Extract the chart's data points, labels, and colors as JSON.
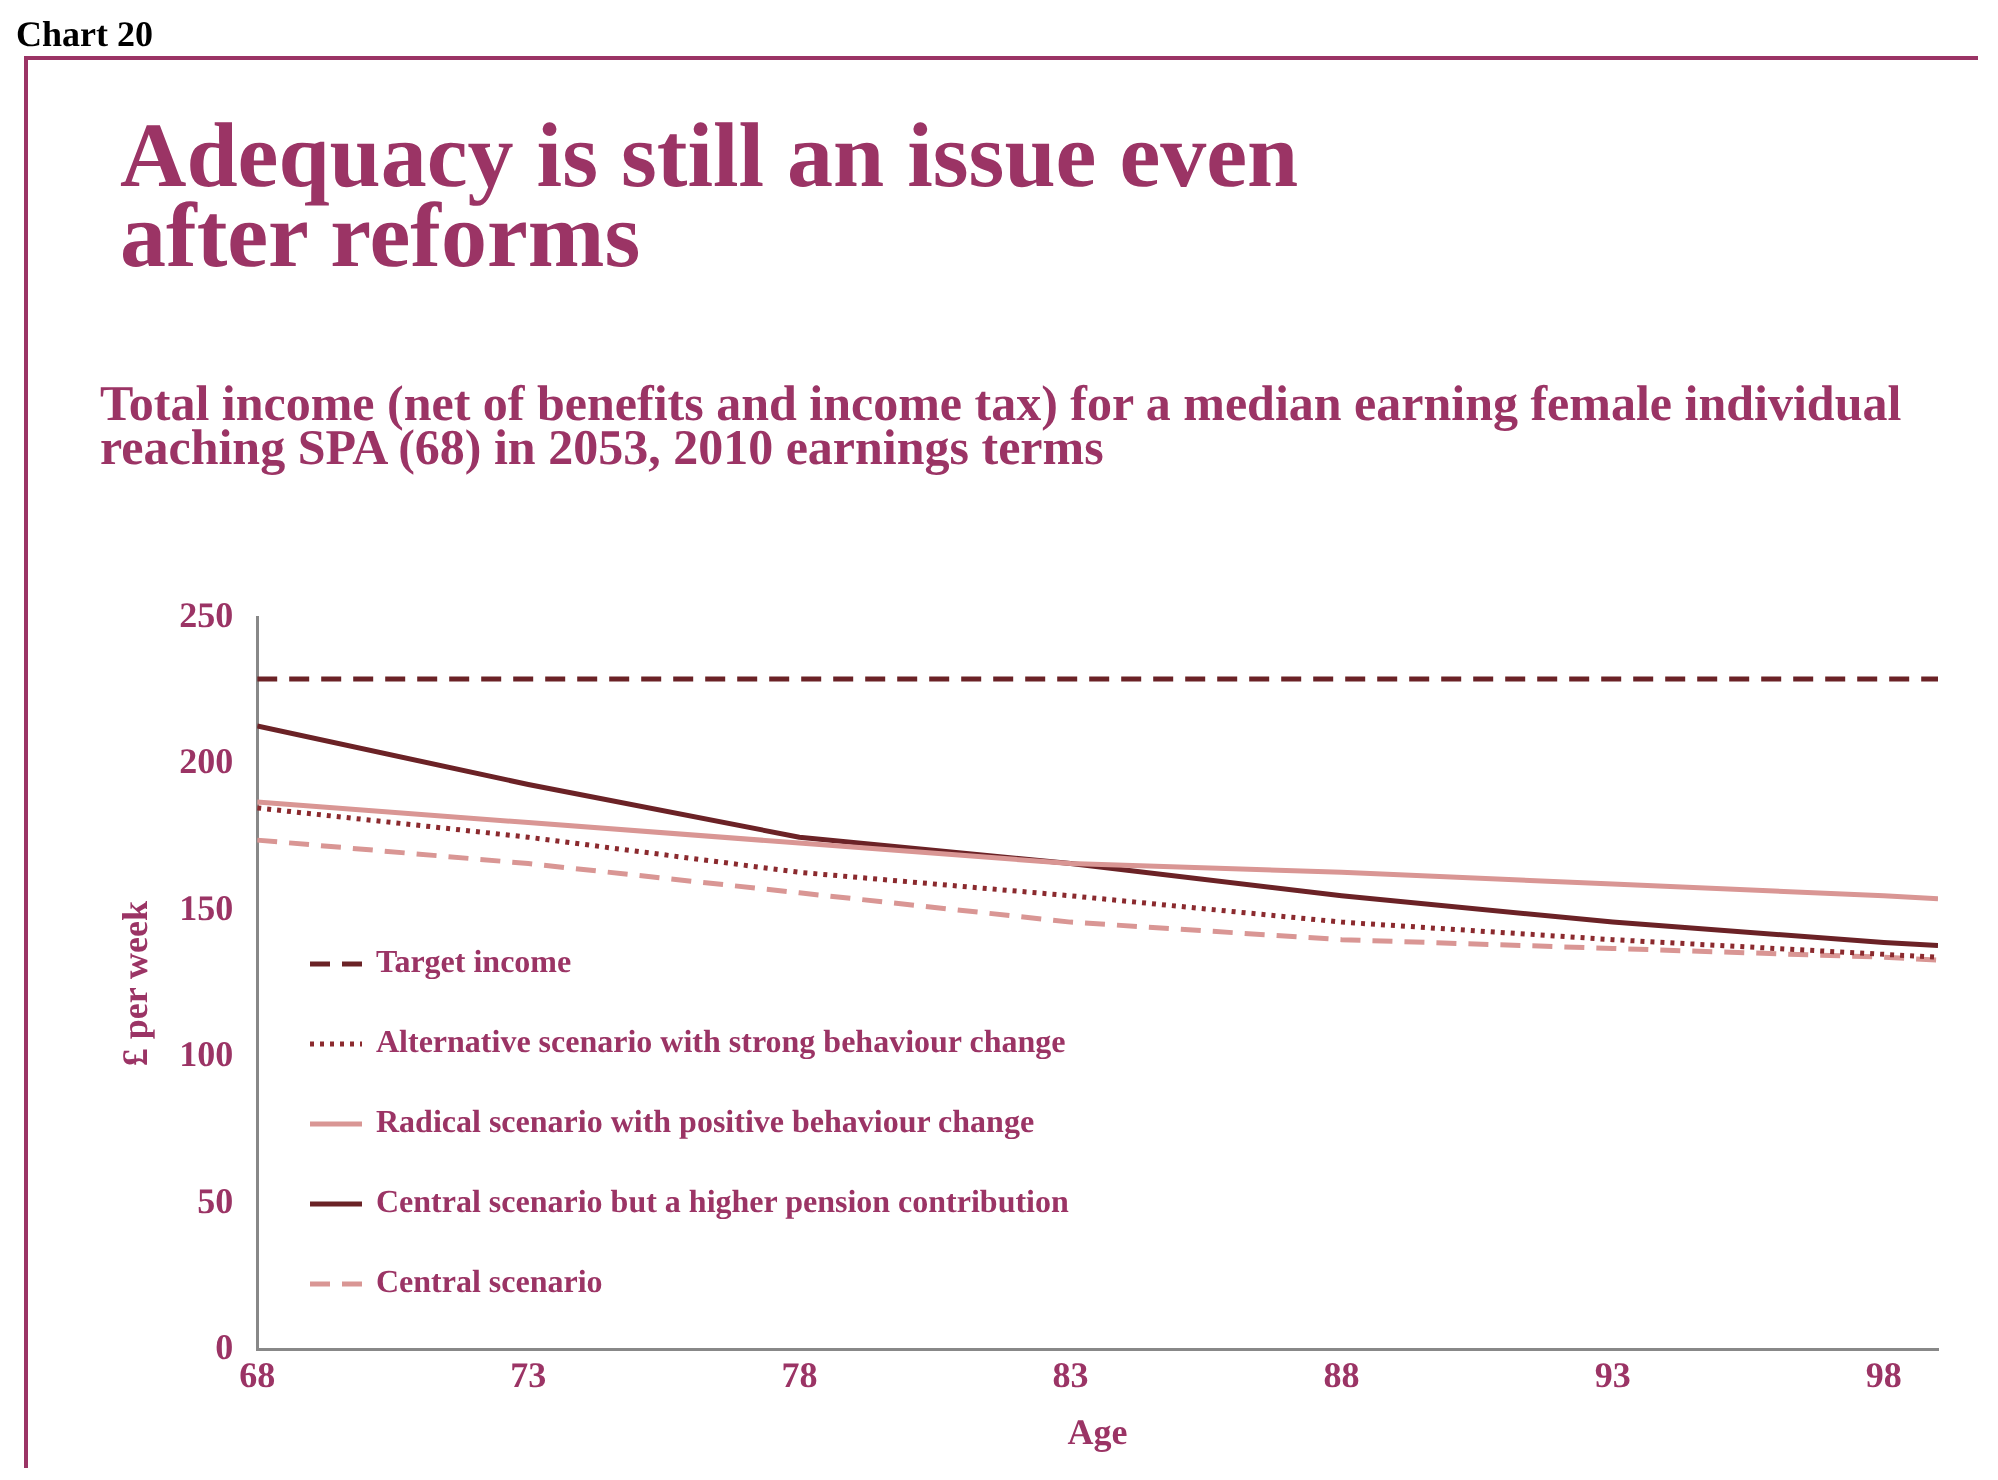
{
  "chart_data": {
    "type": "line",
    "title": "Adequacy is still an issue even after reforms",
    "subtitle": "Total income (net of benefits and income tax) for a median earning female individual reaching SPA (68) in 2053, 2010 earnings terms",
    "annotations": [
      "Chart 20"
    ],
    "xlabel": "Age",
    "ylabel": "£ per week",
    "xlim": [
      68,
      99
    ],
    "xticks": [
      68,
      73,
      78,
      83,
      88,
      93,
      98
    ],
    "ylim": [
      0,
      250
    ],
    "yticks": [
      0,
      50,
      100,
      150,
      200,
      250
    ],
    "grid": false,
    "legend": "bottom left",
    "marker": "none",
    "series": [
      {
        "name": "Target income",
        "color": "#6b2226",
        "line_style": "dashed",
        "x": [
          68,
          99
        ],
        "values": [
          229,
          229
        ]
      },
      {
        "name": "Alternative scenario  with strong behaviour change",
        "color": "#8b2a2e",
        "line_style": "dotted",
        "x": [
          68,
          73,
          78,
          83,
          88,
          93,
          98,
          99
        ],
        "values": [
          185,
          175,
          163,
          155,
          146,
          140,
          135,
          134
        ]
      },
      {
        "name": "Radical scenario with positive behaviour change",
        "color": "#d99694",
        "line_style": "solid",
        "x": [
          68,
          73,
          78,
          83,
          88,
          93,
          98,
          99
        ],
        "values": [
          187,
          180,
          173,
          166,
          163,
          159,
          155,
          154
        ]
      },
      {
        "name": "Central scenario but a higher pension contribution",
        "color": "#6b2226",
        "line_style": "solid",
        "x": [
          68,
          73,
          78,
          83,
          88,
          93,
          98,
          99
        ],
        "values": [
          213,
          193,
          175,
          166,
          155,
          146,
          139,
          138
        ]
      },
      {
        "name": "Central scenario",
        "color": "#d99694",
        "line_style": "dashed",
        "x": [
          68,
          73,
          78,
          83,
          88,
          93,
          98,
          99
        ],
        "values": [
          174,
          166,
          156,
          146,
          140,
          137,
          134,
          133
        ]
      }
    ]
  }
}
